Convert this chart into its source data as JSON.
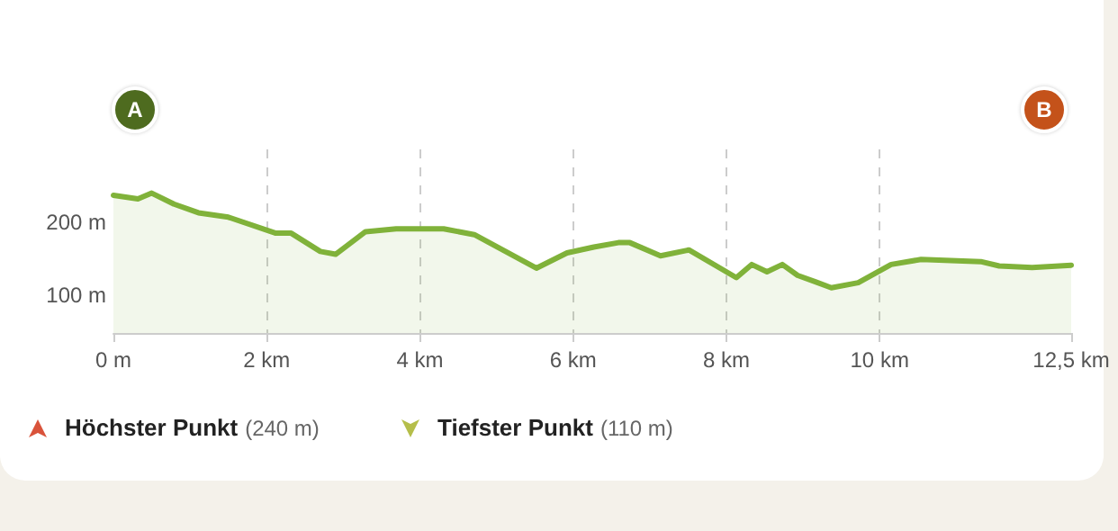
{
  "chart_data": {
    "type": "area",
    "x": [
      0,
      0.32,
      0.5,
      0.79,
      1.11,
      1.5,
      2.12,
      2.32,
      2.7,
      2.9,
      3.29,
      3.69,
      4.31,
      4.71,
      5.52,
      5.92,
      6.27,
      6.59,
      6.74,
      7.14,
      7.51,
      8.13,
      8.33,
      8.53,
      8.73,
      8.93,
      9.17,
      9.37,
      9.72,
      10.15,
      10.54,
      11.32,
      11.56,
      11.99,
      12.5
    ],
    "series": [
      {
        "color": "#80b23a",
        "values": [
          237,
          232,
          240,
          225,
          213,
          207,
          185,
          185,
          160,
          156,
          187,
          191,
          191,
          183,
          137,
          158,
          166,
          172,
          172,
          154,
          162,
          124,
          142,
          132,
          142,
          127,
          118,
          110,
          117,
          142,
          149,
          146,
          140,
          138,
          141
        ]
      }
    ],
    "xlim": [
      0,
      12.5
    ],
    "xticks": [
      {
        "value": 0,
        "label": "0 m"
      },
      {
        "value": 2,
        "label": "2 km"
      },
      {
        "value": 4,
        "label": "4 km"
      },
      {
        "value": 6,
        "label": "6 km"
      },
      {
        "value": 8,
        "label": "8 km"
      },
      {
        "value": 10,
        "label": "10 km"
      },
      {
        "value": 12.5,
        "label": "12,5 km"
      }
    ],
    "ylim": [
      48,
      300
    ],
    "yticks": [
      {
        "value": 100,
        "label": "100 m"
      },
      {
        "value": 200,
        "label": "200 m"
      }
    ],
    "grid": true,
    "line_style": "solid",
    "marker": "none",
    "annotations": [
      "A",
      "B",
      "Höchster Punkt (240 m)",
      "Tiefster Punkt (110 m)"
    ]
  }
}
